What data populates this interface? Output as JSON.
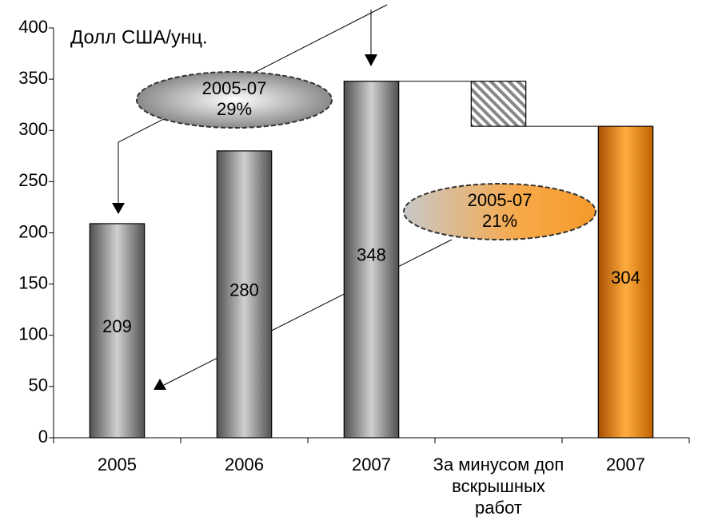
{
  "chart_data": {
    "type": "waterfall",
    "axis_label": "Долл США/унц.",
    "categories": [
      "2005",
      "2006",
      "2007",
      "За минусом доп вскрышных работ",
      "2007"
    ],
    "values": [
      209,
      280,
      348,
      -44,
      304
    ],
    "value_labels": [
      "209",
      "280",
      "348",
      null,
      "304"
    ],
    "bar_kinds": [
      "total",
      "total",
      "total",
      "delta",
      "total"
    ],
    "colors": [
      "#8c8c8c",
      "#8c8c8c",
      "#8c8c8c",
      "#9a9a9a",
      "#ff9900"
    ],
    "ylim": [
      0,
      400
    ],
    "yticks": [
      0,
      50,
      100,
      150,
      200,
      250,
      300,
      350,
      400
    ],
    "annotations": [
      {
        "lines": [
          "2005-07",
          "29%"
        ]
      },
      {
        "lines": [
          "2005-07",
          "21%"
        ]
      }
    ]
  }
}
